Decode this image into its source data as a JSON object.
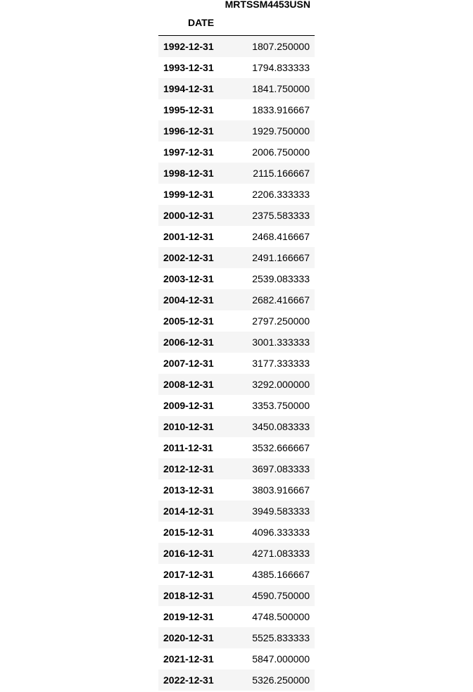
{
  "table": {
    "column_header": "MRTSSM4453USN",
    "index_name": "DATE",
    "rows": [
      {
        "date": "1992-12-31",
        "value": "1807.250000"
      },
      {
        "date": "1993-12-31",
        "value": "1794.833333"
      },
      {
        "date": "1994-12-31",
        "value": "1841.750000"
      },
      {
        "date": "1995-12-31",
        "value": "1833.916667"
      },
      {
        "date": "1996-12-31",
        "value": "1929.750000"
      },
      {
        "date": "1997-12-31",
        "value": "2006.750000"
      },
      {
        "date": "1998-12-31",
        "value": "2115.166667"
      },
      {
        "date": "1999-12-31",
        "value": "2206.333333"
      },
      {
        "date": "2000-12-31",
        "value": "2375.583333"
      },
      {
        "date": "2001-12-31",
        "value": "2468.416667"
      },
      {
        "date": "2002-12-31",
        "value": "2491.166667"
      },
      {
        "date": "2003-12-31",
        "value": "2539.083333"
      },
      {
        "date": "2004-12-31",
        "value": "2682.416667"
      },
      {
        "date": "2005-12-31",
        "value": "2797.250000"
      },
      {
        "date": "2006-12-31",
        "value": "3001.333333"
      },
      {
        "date": "2007-12-31",
        "value": "3177.333333"
      },
      {
        "date": "2008-12-31",
        "value": "3292.000000"
      },
      {
        "date": "2009-12-31",
        "value": "3353.750000"
      },
      {
        "date": "2010-12-31",
        "value": "3450.083333"
      },
      {
        "date": "2011-12-31",
        "value": "3532.666667"
      },
      {
        "date": "2012-12-31",
        "value": "3697.083333"
      },
      {
        "date": "2013-12-31",
        "value": "3803.916667"
      },
      {
        "date": "2014-12-31",
        "value": "3949.583333"
      },
      {
        "date": "2015-12-31",
        "value": "4096.333333"
      },
      {
        "date": "2016-12-31",
        "value": "4271.083333"
      },
      {
        "date": "2017-12-31",
        "value": "4385.166667"
      },
      {
        "date": "2018-12-31",
        "value": "4590.750000"
      },
      {
        "date": "2019-12-31",
        "value": "4748.500000"
      },
      {
        "date": "2020-12-31",
        "value": "5525.833333"
      },
      {
        "date": "2021-12-31",
        "value": "5847.000000"
      },
      {
        "date": "2022-12-31",
        "value": "5326.250000"
      }
    ]
  }
}
